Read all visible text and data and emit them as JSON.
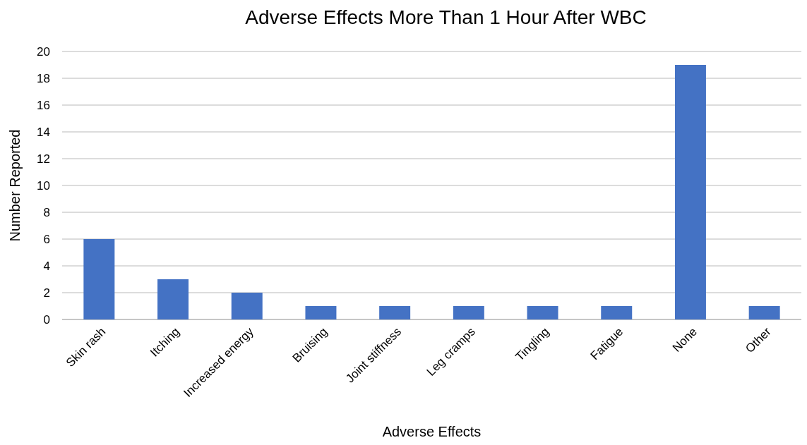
{
  "chart_data": {
    "type": "bar",
    "title": "Adverse Effects More Than 1 Hour After WBC",
    "xlabel": "Adverse Effects",
    "ylabel": "Number Reported",
    "categories": [
      "Skin rash",
      "Itching",
      "Increased energy",
      "Bruising",
      "Joint stiffness",
      "Leg cramps",
      "Tingling",
      "Fatigue",
      "None",
      "Other"
    ],
    "values": [
      6,
      3,
      2,
      1,
      1,
      1,
      1,
      1,
      19,
      1
    ],
    "color": "#4472c4",
    "ylim": [
      0,
      20
    ],
    "yticks": [
      0,
      2,
      4,
      6,
      8,
      10,
      12,
      14,
      16,
      18,
      20
    ],
    "grid": "y"
  }
}
